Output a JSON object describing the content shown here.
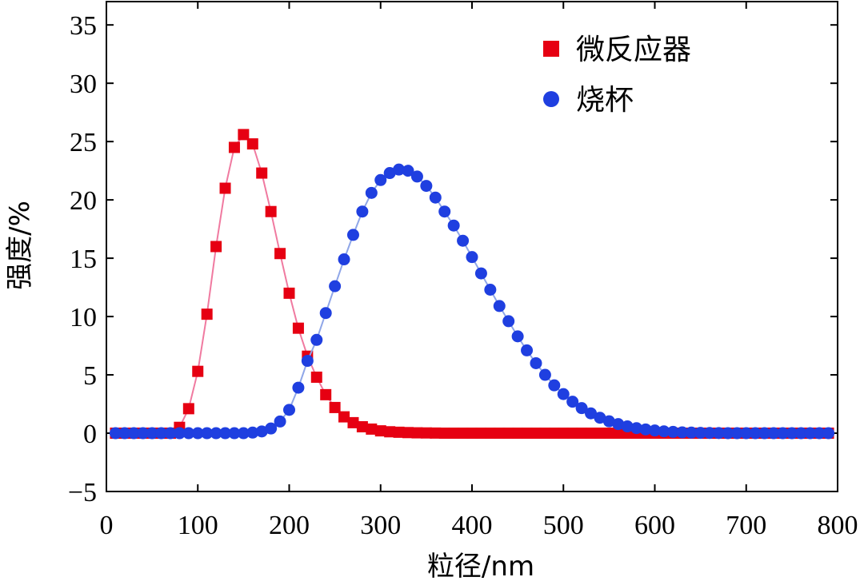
{
  "chart_data": {
    "type": "scatter",
    "title": "",
    "xlabel": "粒径/nm",
    "ylabel": "强度/%",
    "xlim": [
      0,
      800
    ],
    "ylim": [
      -5,
      37
    ],
    "xticks": [
      0,
      100,
      200,
      300,
      400,
      500,
      600,
      700,
      800
    ],
    "yticks": [
      -5,
      0,
      5,
      10,
      15,
      20,
      25,
      30,
      35
    ],
    "xtick_labels": [
      "0",
      "100",
      "200",
      "300",
      "400",
      "500",
      "600",
      "700",
      "800"
    ],
    "ytick_labels": [
      "−5",
      "0",
      "5",
      "10",
      "15",
      "20",
      "25",
      "30",
      "35"
    ],
    "grid": false,
    "legend_position": "top-right",
    "series": [
      {
        "name": "微反应器",
        "marker": "square",
        "color": "#e60012",
        "line_color": "#f07aa0",
        "x": [
          10,
          20,
          30,
          40,
          50,
          60,
          70,
          80,
          90,
          100,
          110,
          120,
          130,
          140,
          150,
          160,
          170,
          180,
          190,
          200,
          210,
          220,
          230,
          240,
          250,
          260,
          270,
          280,
          290,
          300,
          310,
          320,
          330,
          340,
          350,
          360,
          370,
          380,
          390,
          400,
          410,
          420,
          430,
          440,
          450,
          460,
          470,
          480,
          490,
          500,
          510,
          520,
          530,
          540,
          550,
          560,
          570,
          580,
          590,
          600,
          610,
          620,
          630,
          640,
          650,
          660,
          670,
          680,
          690,
          700,
          710,
          720,
          730,
          740,
          750,
          760,
          770,
          780,
          790
        ],
        "y": [
          0,
          0,
          0,
          0,
          0,
          0,
          0,
          0.5,
          2.1,
          5.3,
          10.2,
          16.0,
          21.0,
          24.5,
          25.6,
          24.8,
          22.3,
          19.0,
          15.4,
          12.0,
          9.0,
          6.6,
          4.8,
          3.3,
          2.2,
          1.4,
          0.9,
          0.55,
          0.35,
          0.2,
          0.12,
          0.08,
          0.05,
          0.03,
          0.02,
          0.01,
          0,
          0,
          0,
          0,
          0,
          0,
          0,
          0,
          0,
          0,
          0,
          0,
          0,
          0,
          0,
          0,
          0,
          0,
          0,
          0,
          0,
          0,
          0,
          0,
          0,
          0,
          0,
          0,
          0,
          0,
          0,
          0,
          0,
          0,
          0,
          0,
          0,
          0,
          0,
          0,
          0,
          0,
          0
        ]
      },
      {
        "name": "烧杯",
        "marker": "circle",
        "color": "#1f3fe0",
        "line_color": "#8fa6e8",
        "x": [
          10,
          20,
          30,
          40,
          50,
          60,
          70,
          80,
          90,
          100,
          110,
          120,
          130,
          140,
          150,
          160,
          170,
          180,
          190,
          200,
          210,
          220,
          230,
          240,
          250,
          260,
          270,
          280,
          290,
          300,
          310,
          320,
          330,
          340,
          350,
          360,
          370,
          380,
          390,
          400,
          410,
          420,
          430,
          440,
          450,
          460,
          470,
          480,
          490,
          500,
          510,
          520,
          530,
          540,
          550,
          560,
          570,
          580,
          590,
          600,
          610,
          620,
          630,
          640,
          650,
          660,
          670,
          680,
          690,
          700,
          710,
          720,
          730,
          740,
          750,
          760,
          770,
          780,
          790
        ],
        "y": [
          0,
          0,
          0,
          0,
          0,
          0,
          0,
          0,
          0,
          0,
          0,
          0,
          0,
          0,
          0,
          0.05,
          0.15,
          0.4,
          1.0,
          2.0,
          3.9,
          6.2,
          8.0,
          10.3,
          12.6,
          14.9,
          17.0,
          19.0,
          20.6,
          21.7,
          22.3,
          22.6,
          22.5,
          22.0,
          21.2,
          20.2,
          19.0,
          17.8,
          16.5,
          15.1,
          13.7,
          12.3,
          10.9,
          9.6,
          8.3,
          7.1,
          6.0,
          5.0,
          4.1,
          3.35,
          2.7,
          2.15,
          1.7,
          1.32,
          1.02,
          0.78,
          0.58,
          0.43,
          0.32,
          0.23,
          0.16,
          0.11,
          0.07,
          0.05,
          0.03,
          0.02,
          0.01,
          0,
          0,
          0,
          0,
          0,
          0,
          0,
          0,
          0,
          0,
          0,
          0
        ]
      }
    ]
  }
}
